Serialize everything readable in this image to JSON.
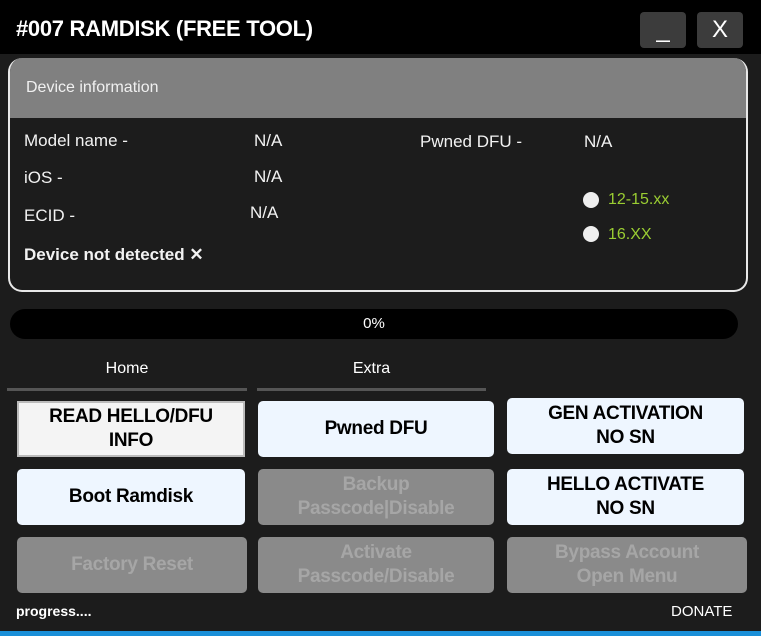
{
  "window": {
    "title": "#007 RAMDISK (FREE TOOL)",
    "minimize": "_",
    "close": "X"
  },
  "device": {
    "header": "Device information",
    "model_label": "Model name  -",
    "model_value": "N/A",
    "ios_label": "iOS -",
    "ios_value": "N/A",
    "ecid_label": "ECID  -",
    "ecid_value": "N/A",
    "pwned_label": "Pwned DFU  -",
    "pwned_value": "N/A",
    "status": "Device not detected ✕",
    "radios": [
      {
        "label": "12-15.xx",
        "selected": false
      },
      {
        "label": "16.XX",
        "selected": false
      }
    ]
  },
  "progress": {
    "value": 0,
    "text": "0%"
  },
  "tabs": [
    {
      "label": "Home"
    },
    {
      "label": "Extra"
    }
  ],
  "buttons": [
    "READ HELLO/DFU\nINFO",
    "Pwned DFU",
    "GEN ACTIVATION\nNO SN",
    "Boot Ramdisk",
    "Backup\nPasscode|Disable",
    "HELLO ACTIVATE\nNO SN",
    "Factory Reset",
    "Activate\nPasscode/Disable",
    "Bypass Account\nOpen Menu"
  ],
  "footer": {
    "status": "progress....",
    "donate": "DONATE"
  }
}
